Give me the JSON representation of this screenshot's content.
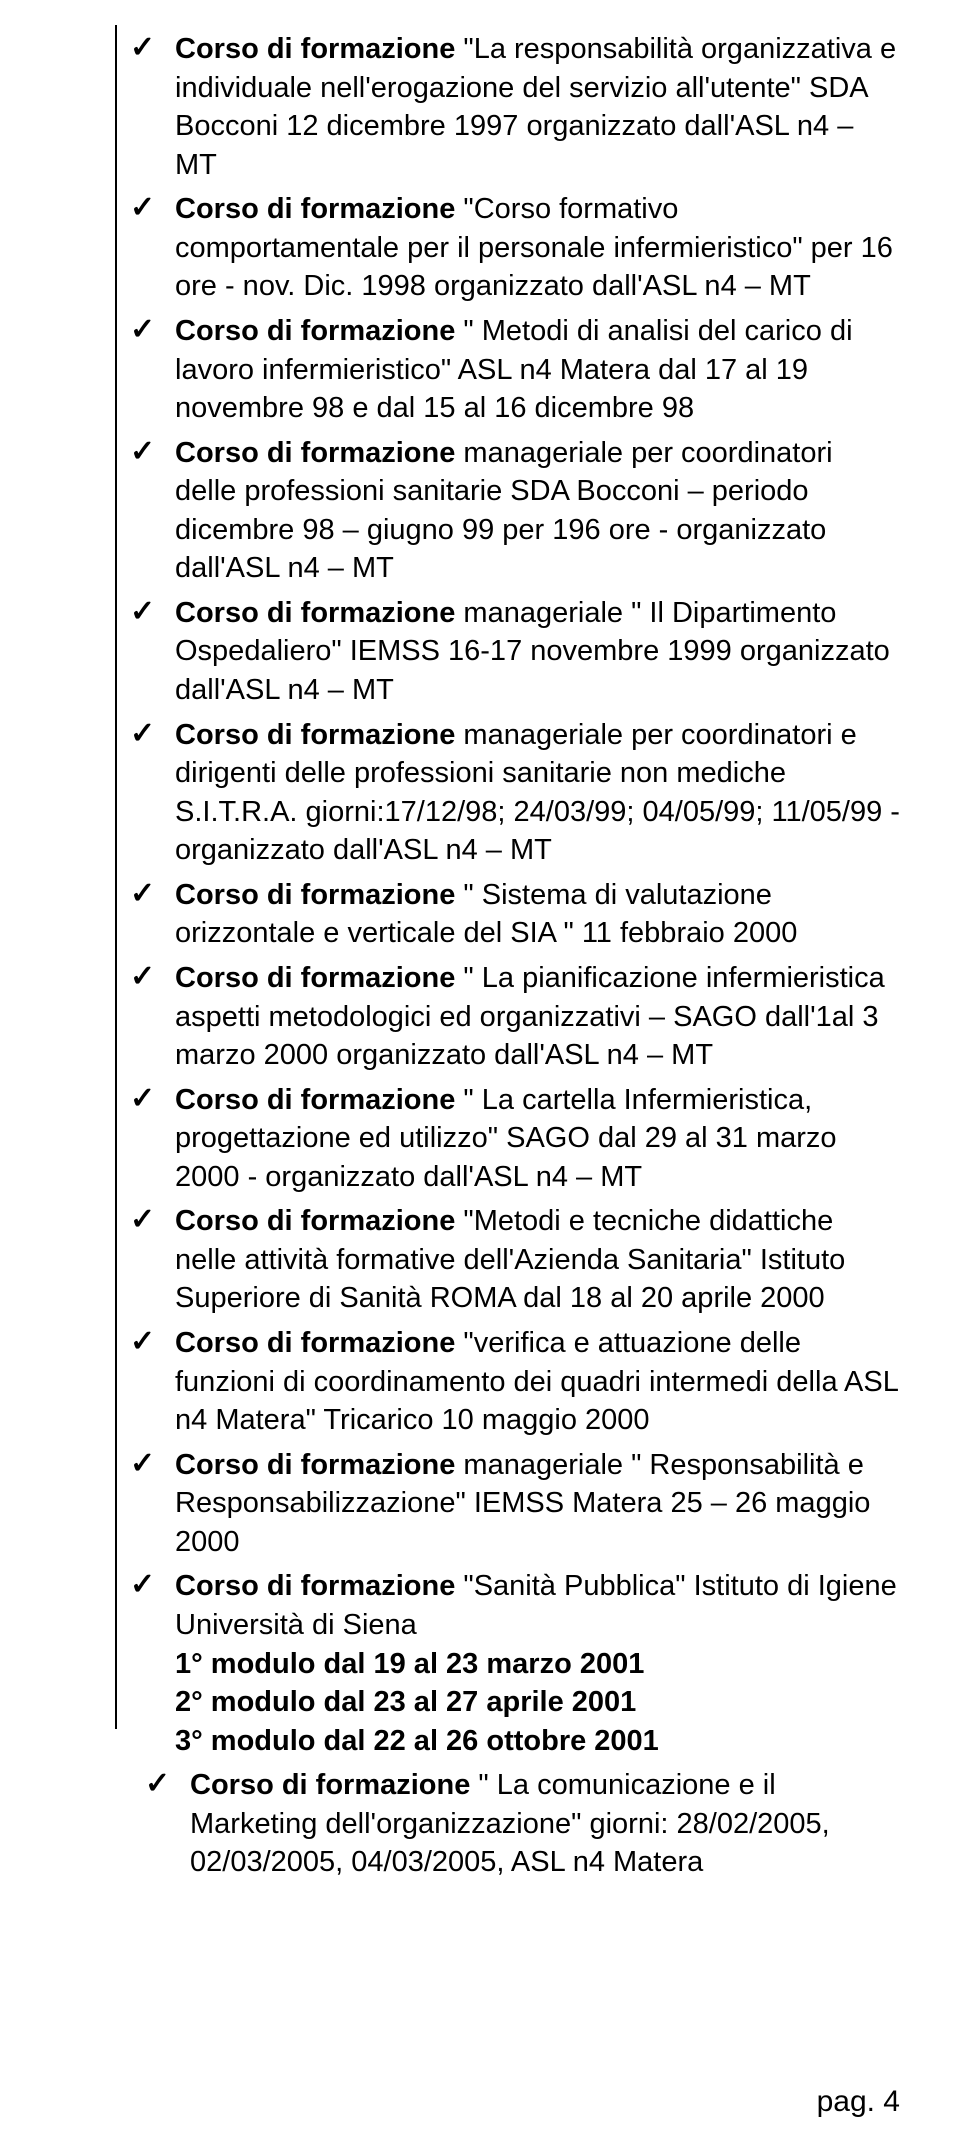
{
  "checkmark": "✓",
  "bold_prefix": "Corso di formazione",
  "items": [
    {
      "rest": " \"La responsabilità organizzativa e individuale nell'erogazione del servizio all'utente\" SDA Bocconi 12 dicembre 1997 organizzato dall'ASL n4 – MT"
    },
    {
      "rest": " \"Corso formativo comportamentale per il personale infermieristico\"  per 16 ore - nov. Dic. 1998 organizzato dall'ASL n4 – MT"
    },
    {
      "rest": " \" Metodi di analisi del carico di lavoro infermieristico\" ASL n4 Matera dal 17 al 19 novembre 98 e dal 15 al 16 dicembre 98"
    },
    {
      "rest": " manageriale per coordinatori delle professioni sanitarie SDA Bocconi – periodo dicembre 98 – giugno 99  per 196 ore - organizzato dall'ASL n4 – MT"
    },
    {
      "rest": " manageriale \" Il Dipartimento Ospedaliero\" IEMSS 16-17 novembre 1999 organizzato dall'ASL n4 – MT"
    },
    {
      "rest": " manageriale per coordinatori e dirigenti delle  professioni sanitarie non mediche S.I.T.R.A. giorni:17/12/98; 24/03/99; 04/05/99; 11/05/99 - organizzato dall'ASL n4 – MT"
    },
    {
      "rest": " \" Sistema di valutazione orizzontale e verticale del SIA \"  11 febbraio 2000"
    },
    {
      "rest": " \" La pianificazione infermieristica aspetti metodologici ed organizzativi – SAGO dall'1al 3 marzo 2000 organizzato dall'ASL n4 – MT"
    },
    {
      "rest": " \" La cartella Infermieristica, progettazione ed utilizzo\" SAGO dal 29 al 31 marzo 2000 - organizzato dall'ASL n4 – MT"
    },
    {
      "rest": " \"Metodi e tecniche didattiche nelle attività formative dell'Azienda Sanitaria\" Istituto Superiore di Sanità ROMA dal 18 al 20 aprile 2000"
    },
    {
      "rest": " \"verifica e attuazione delle funzioni di coordinamento dei quadri intermedi della ASL n4 Matera\" Tricarico 10 maggio 2000"
    },
    {
      "rest": " manageriale \" Responsabilità e Responsabilizzazione\" IEMSS Matera 25 – 26 maggio 2000"
    },
    {
      "rest": " \"Sanità Pubblica\" Istituto di Igiene Università di Siena"
    },
    {
      "rest": " \" La comunicazione e il Marketing dell'organizzazione\"  giorni: 28/02/2005, 02/03/2005, 04/03/2005, ASL n4 Matera",
      "indent": true
    }
  ],
  "modules": [
    "1° modulo dal 19 al 23 marzo 2001",
    "2° modulo dal 23 al 27 aprile 2001",
    "3° modulo dal 22 al 26 ottobre 2001"
  ],
  "footer": "pag. 4"
}
